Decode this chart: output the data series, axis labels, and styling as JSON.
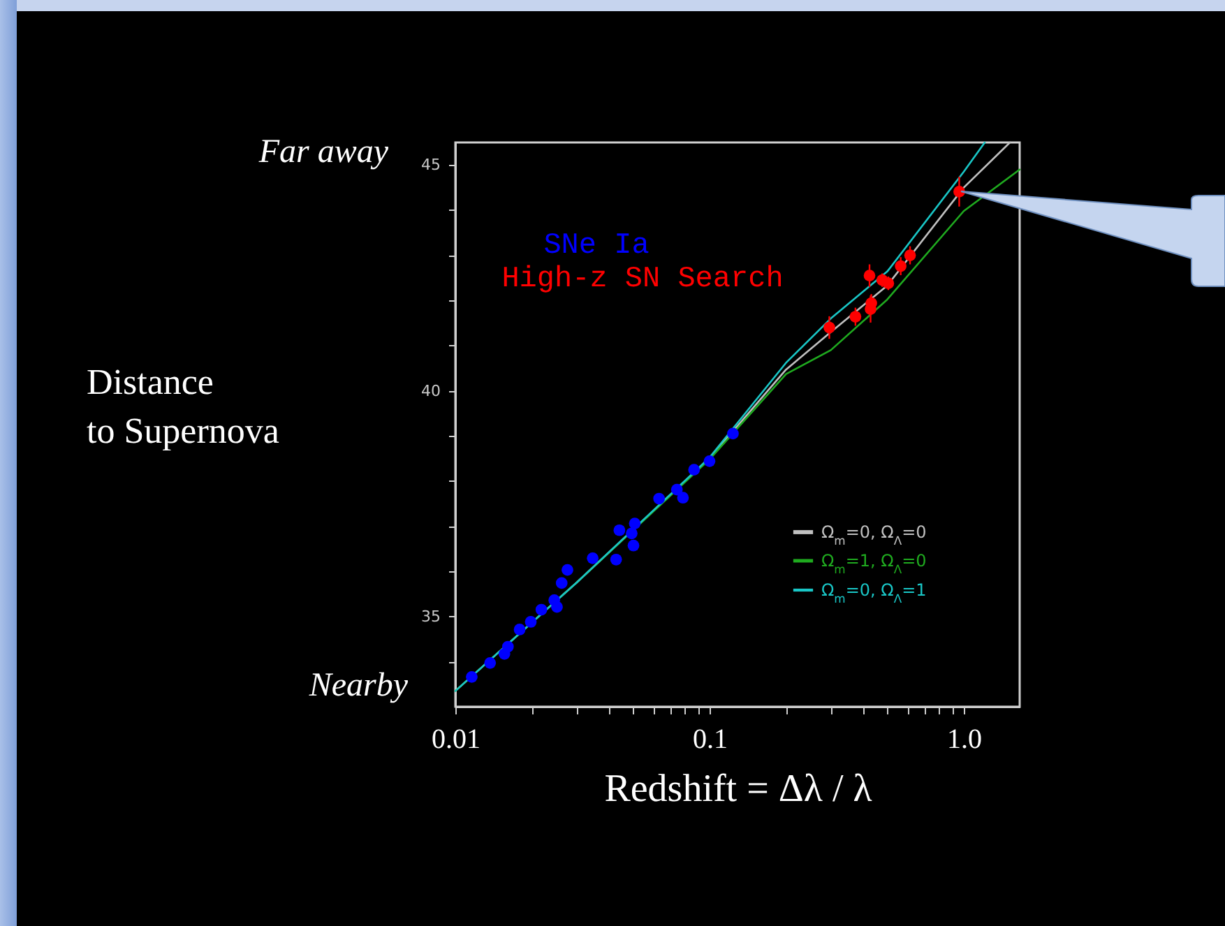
{
  "chart_data": {
    "type": "scatter",
    "xlabel": "Redshift =  Δλ / λ",
    "ylabel": "Distance\nto Supernova",
    "annotations": [
      "Far away",
      "Nearby"
    ],
    "log": "x",
    "xlim": [
      0.01,
      1.66
    ],
    "ylim": [
      33,
      45.5
    ],
    "xticks": [
      0.01,
      {
        "value": 0.02,
        "label": null
      },
      {
        "value": 0.03,
        "label": null
      },
      {
        "value": 0.04,
        "label": null
      },
      {
        "value": 0.05,
        "label": null
      },
      {
        "value": 0.06,
        "label": null
      },
      {
        "value": 0.07,
        "label": null
      },
      {
        "value": 0.08,
        "label": null
      },
      {
        "value": 0.09,
        "label": null
      },
      0.1,
      {
        "value": 0.2,
        "label": null
      },
      {
        "value": 0.3,
        "label": null
      },
      {
        "value": 0.4,
        "label": null
      },
      {
        "value": 0.5,
        "label": null
      },
      {
        "value": 0.6,
        "label": null
      },
      {
        "value": 0.7,
        "label": null
      },
      {
        "value": 0.8,
        "label": null
      },
      {
        "value": 0.9,
        "label": null
      },
      {
        "value": 1,
        "label": "1.0"
      }
    ],
    "yticks": [
      {
        "value": 34,
        "label": null
      },
      35,
      {
        "value": 36,
        "label": null
      },
      {
        "value": 37,
        "label": null
      },
      {
        "value": 38,
        "label": null
      },
      {
        "value": 39,
        "label": null
      },
      40,
      {
        "value": 41,
        "label": null
      },
      {
        "value": 42,
        "label": null
      },
      {
        "value": 43,
        "label": null
      },
      {
        "value": 44,
        "label": null
      },
      45
    ],
    "grid": false,
    "legend": "bottom right",
    "series": [
      {
        "name": "Ω$_{m}$=0, Ω$_{Λ}$=0",
        "type": "line",
        "color": "#c0c0c0",
        "x": [
          0.01,
          0.03,
          0.1,
          0.2,
          0.3,
          0.5,
          1,
          1.52
        ],
        "values": [
          33.35,
          35.75,
          38.5,
          40.47,
          41.3,
          42.33,
          44.5,
          45.5
        ]
      },
      {
        "name": "Ω$_{m}$=1, Ω$_{Λ}$=0",
        "type": "line",
        "color": "#1faa1f",
        "x": [
          0.01,
          0.03,
          0.1,
          0.2,
          0.3,
          0.5,
          1,
          1.66
        ],
        "values": [
          33.35,
          35.75,
          38.48,
          40.37,
          40.9,
          42.02,
          43.98,
          44.9
        ]
      },
      {
        "name": "Ω$_{m}$=0, Ω$_{Λ}$=1",
        "type": "line",
        "color": "#19c6c6",
        "x": [
          0.01,
          0.03,
          0.1,
          0.2,
          0.3,
          0.5,
          1,
          1.21
        ],
        "values": [
          33.35,
          35.75,
          38.52,
          40.62,
          41.6,
          42.64,
          44.85,
          45.5
        ]
      },
      {
        "name": "SNe Ia",
        "marker": "circle",
        "color": "#0000ff",
        "x": [
          0.0116,
          0.0137,
          0.0156,
          0.0161,
          0.0179,
          0.0198,
          0.0218,
          0.0245,
          0.0251,
          0.0262,
          0.0276,
          0.0347,
          0.0429,
          0.0442,
          0.0494,
          0.0502,
          0.0508,
          0.0633,
          0.0744,
          0.0786,
          0.0869,
          0.1,
          0.1236
        ],
        "values": [
          33.66,
          33.97,
          34.17,
          34.33,
          34.71,
          34.88,
          35.15,
          35.36,
          35.21,
          35.74,
          36.03,
          36.29,
          36.26,
          36.91,
          36.84,
          36.57,
          37.06,
          37.61,
          37.81,
          37.63,
          38.25,
          38.44,
          39.05
        ]
      },
      {
        "name": "High-z SN Search",
        "marker": "circle",
        "color": "#ff0000",
        "x": [
          0.296,
          0.375,
          0.426,
          0.43,
          0.433,
          0.478,
          0.505,
          0.565,
          0.615,
          0.96
        ],
        "values": [
          41.4,
          41.64,
          42.55,
          41.81,
          41.94,
          42.45,
          42.38,
          42.76,
          43.0,
          44.41
        ],
        "errors": [
          0.25,
          0.2,
          0.25,
          0.3,
          0.2,
          0.15,
          0.15,
          0.2,
          0.2,
          0.33
        ]
      }
    ]
  }
}
